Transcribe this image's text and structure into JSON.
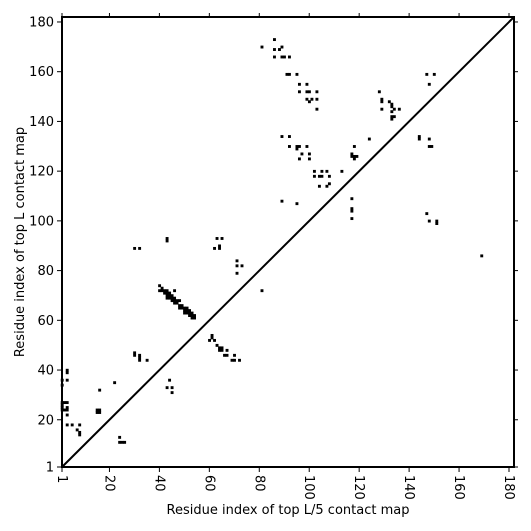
{
  "chart_data": {
    "type": "heatmap",
    "title": "",
    "xlabel": "Residue index of top L/5 contact map",
    "ylabel": "Residue index of top L contact map",
    "xlim": [
      1,
      182
    ],
    "ylim": [
      1,
      182
    ],
    "x_ticks": [
      1,
      20,
      40,
      60,
      80,
      100,
      120,
      140,
      160,
      180
    ],
    "y_ticks": [
      1,
      20,
      40,
      60,
      80,
      100,
      120,
      140,
      160,
      180
    ],
    "x_tick_labels": [
      "1",
      "20",
      "40",
      "60",
      "80",
      "100",
      "120",
      "140",
      "160",
      "180"
    ],
    "y_tick_labels": [
      "1",
      "20",
      "40",
      "60",
      "80",
      "100",
      "120",
      "140",
      "160",
      "180"
    ],
    "diagonal": true,
    "grid": false,
    "colors": {
      "contact": "#000000",
      "axes": "#000000",
      "background": "#ffffff"
    },
    "upper_contacts": [
      [
        81,
        170
      ],
      [
        86,
        173
      ],
      [
        86,
        169
      ],
      [
        86,
        166
      ],
      [
        89,
        170
      ],
      [
        88,
        169
      ],
      [
        89,
        166
      ],
      [
        90,
        166
      ],
      [
        92,
        166
      ],
      [
        95,
        159
      ],
      [
        92,
        159
      ],
      [
        91,
        159
      ],
      [
        96,
        155
      ],
      [
        99,
        155
      ],
      [
        100,
        152
      ],
      [
        99,
        152
      ],
      [
        96,
        152
      ],
      [
        101,
        149
      ],
      [
        99,
        149
      ],
      [
        100,
        148
      ],
      [
        103,
        152
      ],
      [
        103,
        149
      ],
      [
        103,
        145
      ],
      [
        128,
        152
      ],
      [
        129,
        148
      ],
      [
        129,
        149
      ],
      [
        129,
        145
      ],
      [
        132,
        148
      ],
      [
        133,
        147
      ],
      [
        133,
        146
      ],
      [
        134,
        145
      ],
      [
        133,
        144
      ],
      [
        134,
        142
      ],
      [
        133,
        142
      ],
      [
        133,
        141
      ],
      [
        136,
        145
      ],
      [
        147,
        159
      ],
      [
        148,
        155
      ],
      [
        150,
        159
      ],
      [
        144,
        134
      ],
      [
        144,
        133
      ],
      [
        148,
        133
      ],
      [
        148,
        130
      ],
      [
        149,
        130
      ],
      [
        89,
        134
      ],
      [
        92,
        134
      ],
      [
        92,
        130
      ],
      [
        95,
        130
      ],
      [
        96,
        130
      ],
      [
        95,
        129
      ],
      [
        99,
        130
      ],
      [
        97,
        127
      ],
      [
        100,
        127
      ],
      [
        100,
        125
      ],
      [
        96,
        125
      ],
      [
        102,
        120
      ],
      [
        102,
        118
      ],
      [
        105,
        120
      ],
      [
        105,
        118
      ],
      [
        104,
        118
      ],
      [
        104,
        114
      ],
      [
        107,
        120
      ],
      [
        107,
        114
      ],
      [
        108,
        118
      ],
      [
        108,
        115
      ],
      [
        113,
        120
      ],
      [
        117,
        127
      ],
      [
        117,
        126
      ],
      [
        118,
        126
      ],
      [
        118,
        125
      ],
      [
        119,
        126
      ],
      [
        118,
        130
      ],
      [
        124,
        133
      ],
      [
        117,
        109
      ],
      [
        117,
        105
      ],
      [
        117,
        104
      ],
      [
        117,
        101
      ],
      [
        147,
        103
      ],
      [
        148,
        100
      ],
      [
        151,
        100
      ],
      [
        151,
        99
      ],
      [
        89,
        108
      ],
      [
        95,
        107
      ],
      [
        169,
        86
      ],
      [
        62,
        89
      ],
      [
        64,
        89
      ],
      [
        64,
        90
      ],
      [
        63,
        93
      ],
      [
        65,
        93
      ],
      [
        71,
        84
      ],
      [
        71,
        82
      ],
      [
        73,
        82
      ],
      [
        71,
        79
      ],
      [
        81,
        72
      ],
      [
        30,
        89
      ],
      [
        32,
        89
      ],
      [
        43,
        93
      ],
      [
        43,
        92
      ]
    ],
    "lower_contacts": [
      [
        3,
        40
      ],
      [
        3,
        39
      ],
      [
        3,
        36
      ],
      [
        1,
        36
      ],
      [
        1,
        34
      ],
      [
        3,
        27
      ],
      [
        3,
        25
      ],
      [
        2,
        27
      ],
      [
        1,
        27
      ],
      [
        1,
        26
      ],
      [
        1,
        25
      ],
      [
        1,
        24
      ],
      [
        2,
        24
      ],
      [
        3,
        24
      ],
      [
        3,
        22
      ],
      [
        3,
        18
      ],
      [
        5,
        18
      ],
      [
        8,
        18
      ],
      [
        7,
        16
      ],
      [
        8,
        15
      ],
      [
        8,
        14
      ],
      [
        15,
        24
      ],
      [
        15,
        23
      ],
      [
        16,
        24
      ],
      [
        16,
        23
      ],
      [
        16,
        32
      ],
      [
        22,
        35
      ],
      [
        24,
        13
      ],
      [
        24,
        11
      ],
      [
        25,
        11
      ],
      [
        26,
        11
      ],
      [
        30,
        47
      ],
      [
        30,
        46
      ],
      [
        32,
        46
      ],
      [
        32,
        45
      ],
      [
        32,
        44
      ],
      [
        35,
        44
      ],
      [
        40,
        74
      ],
      [
        40,
        72
      ],
      [
        41,
        73
      ],
      [
        41,
        72
      ],
      [
        42,
        72
      ],
      [
        42,
        71
      ],
      [
        43,
        72
      ],
      [
        43,
        71
      ],
      [
        43,
        70
      ],
      [
        43,
        69
      ],
      [
        44,
        71
      ],
      [
        44,
        70
      ],
      [
        44,
        69
      ],
      [
        45,
        70
      ],
      [
        45,
        69
      ],
      [
        45,
        68
      ],
      [
        46,
        69
      ],
      [
        46,
        68
      ],
      [
        46,
        67
      ],
      [
        47,
        68
      ],
      [
        47,
        67
      ],
      [
        48,
        68
      ],
      [
        48,
        66
      ],
      [
        48,
        65
      ],
      [
        49,
        66
      ],
      [
        49,
        65
      ],
      [
        50,
        65
      ],
      [
        50,
        64
      ],
      [
        50,
        63
      ],
      [
        51,
        65
      ],
      [
        51,
        64
      ],
      [
        51,
        63
      ],
      [
        52,
        64
      ],
      [
        52,
        63
      ],
      [
        52,
        62
      ],
      [
        53,
        63
      ],
      [
        53,
        62
      ],
      [
        53,
        61
      ],
      [
        54,
        62
      ],
      [
        54,
        61
      ],
      [
        44,
        36
      ],
      [
        43,
        33
      ],
      [
        45,
        33
      ],
      [
        45,
        31
      ],
      [
        44,
        71
      ],
      [
        46,
        72
      ],
      [
        60,
        52
      ],
      [
        61,
        54
      ],
      [
        61,
        53
      ],
      [
        62,
        52
      ],
      [
        63,
        50
      ],
      [
        64,
        49
      ],
      [
        65,
        49
      ],
      [
        64,
        48
      ],
      [
        65,
        48
      ],
      [
        67,
        48
      ],
      [
        66,
        46
      ],
      [
        67,
        46
      ],
      [
        69,
        44
      ],
      [
        70,
        44
      ],
      [
        70,
        46
      ],
      [
        72,
        44
      ]
    ]
  }
}
